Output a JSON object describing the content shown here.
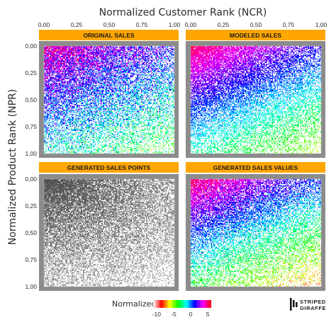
{
  "chart_data": {
    "type": "heatmap",
    "x_axis": {
      "title": "Normalized Customer Rank (NCR)",
      "ticks": [
        "0,00",
        "0,25",
        "0,50",
        "0,75",
        "1,00"
      ],
      "tick_values": [
        0,
        0.25,
        0.5,
        0.75,
        1
      ],
      "range": [
        0,
        1
      ],
      "position": "top"
    },
    "y_axis": {
      "title": "Normalized Product Rank (NPR)",
      "ticks": [
        "0,00",
        "0,25",
        "0,50",
        "0,75",
        "1,00"
      ],
      "tick_values": [
        0,
        0.25,
        0.5,
        0.75,
        1
      ],
      "range": [
        0,
        1
      ],
      "reversed": true
    },
    "grid": true,
    "facets": [
      {
        "title": "ORIGINAL SALES",
        "style": "color",
        "peak": 4.0,
        "decay": 2.4,
        "fill": 0.93,
        "jitter": 3.2
      },
      {
        "title": "MODELED SALES",
        "style": "color",
        "peak": 5.0,
        "decay": 3.2,
        "fill": 0.95,
        "jitter": 1.4
      },
      {
        "title": "GENERATED SALES POINTS",
        "style": "gray",
        "peak": 0,
        "decay": 2.6,
        "fill": 0.97,
        "jitter": 0
      },
      {
        "title": "GENERATED SALES VALUES",
        "style": "color",
        "peak": 5.0,
        "decay": 3.8,
        "fill": 0.9,
        "jitter": 2.2
      }
    ],
    "legend": {
      "title": "Normalized sales",
      "ticks": [
        "-10",
        "-5",
        "0",
        "5"
      ],
      "tick_values": [
        -10,
        -5,
        0,
        5
      ],
      "range": [
        -11,
        6
      ],
      "colors": [
        "#ffffff",
        "#ff0000",
        "#ffff00",
        "#00ff00",
        "#00ffff",
        "#0000ff",
        "#ff00ff",
        "#ff0000"
      ],
      "placement": "bottom-center"
    },
    "colors": {
      "panel_background": "#8c8c8c",
      "strip": "#ffa600",
      "gridline": "#c8c8c8",
      "points_gray": "#6e6e6e"
    }
  },
  "logo": {
    "line1": "STRIPED",
    "line2": "GIRAFFE"
  }
}
